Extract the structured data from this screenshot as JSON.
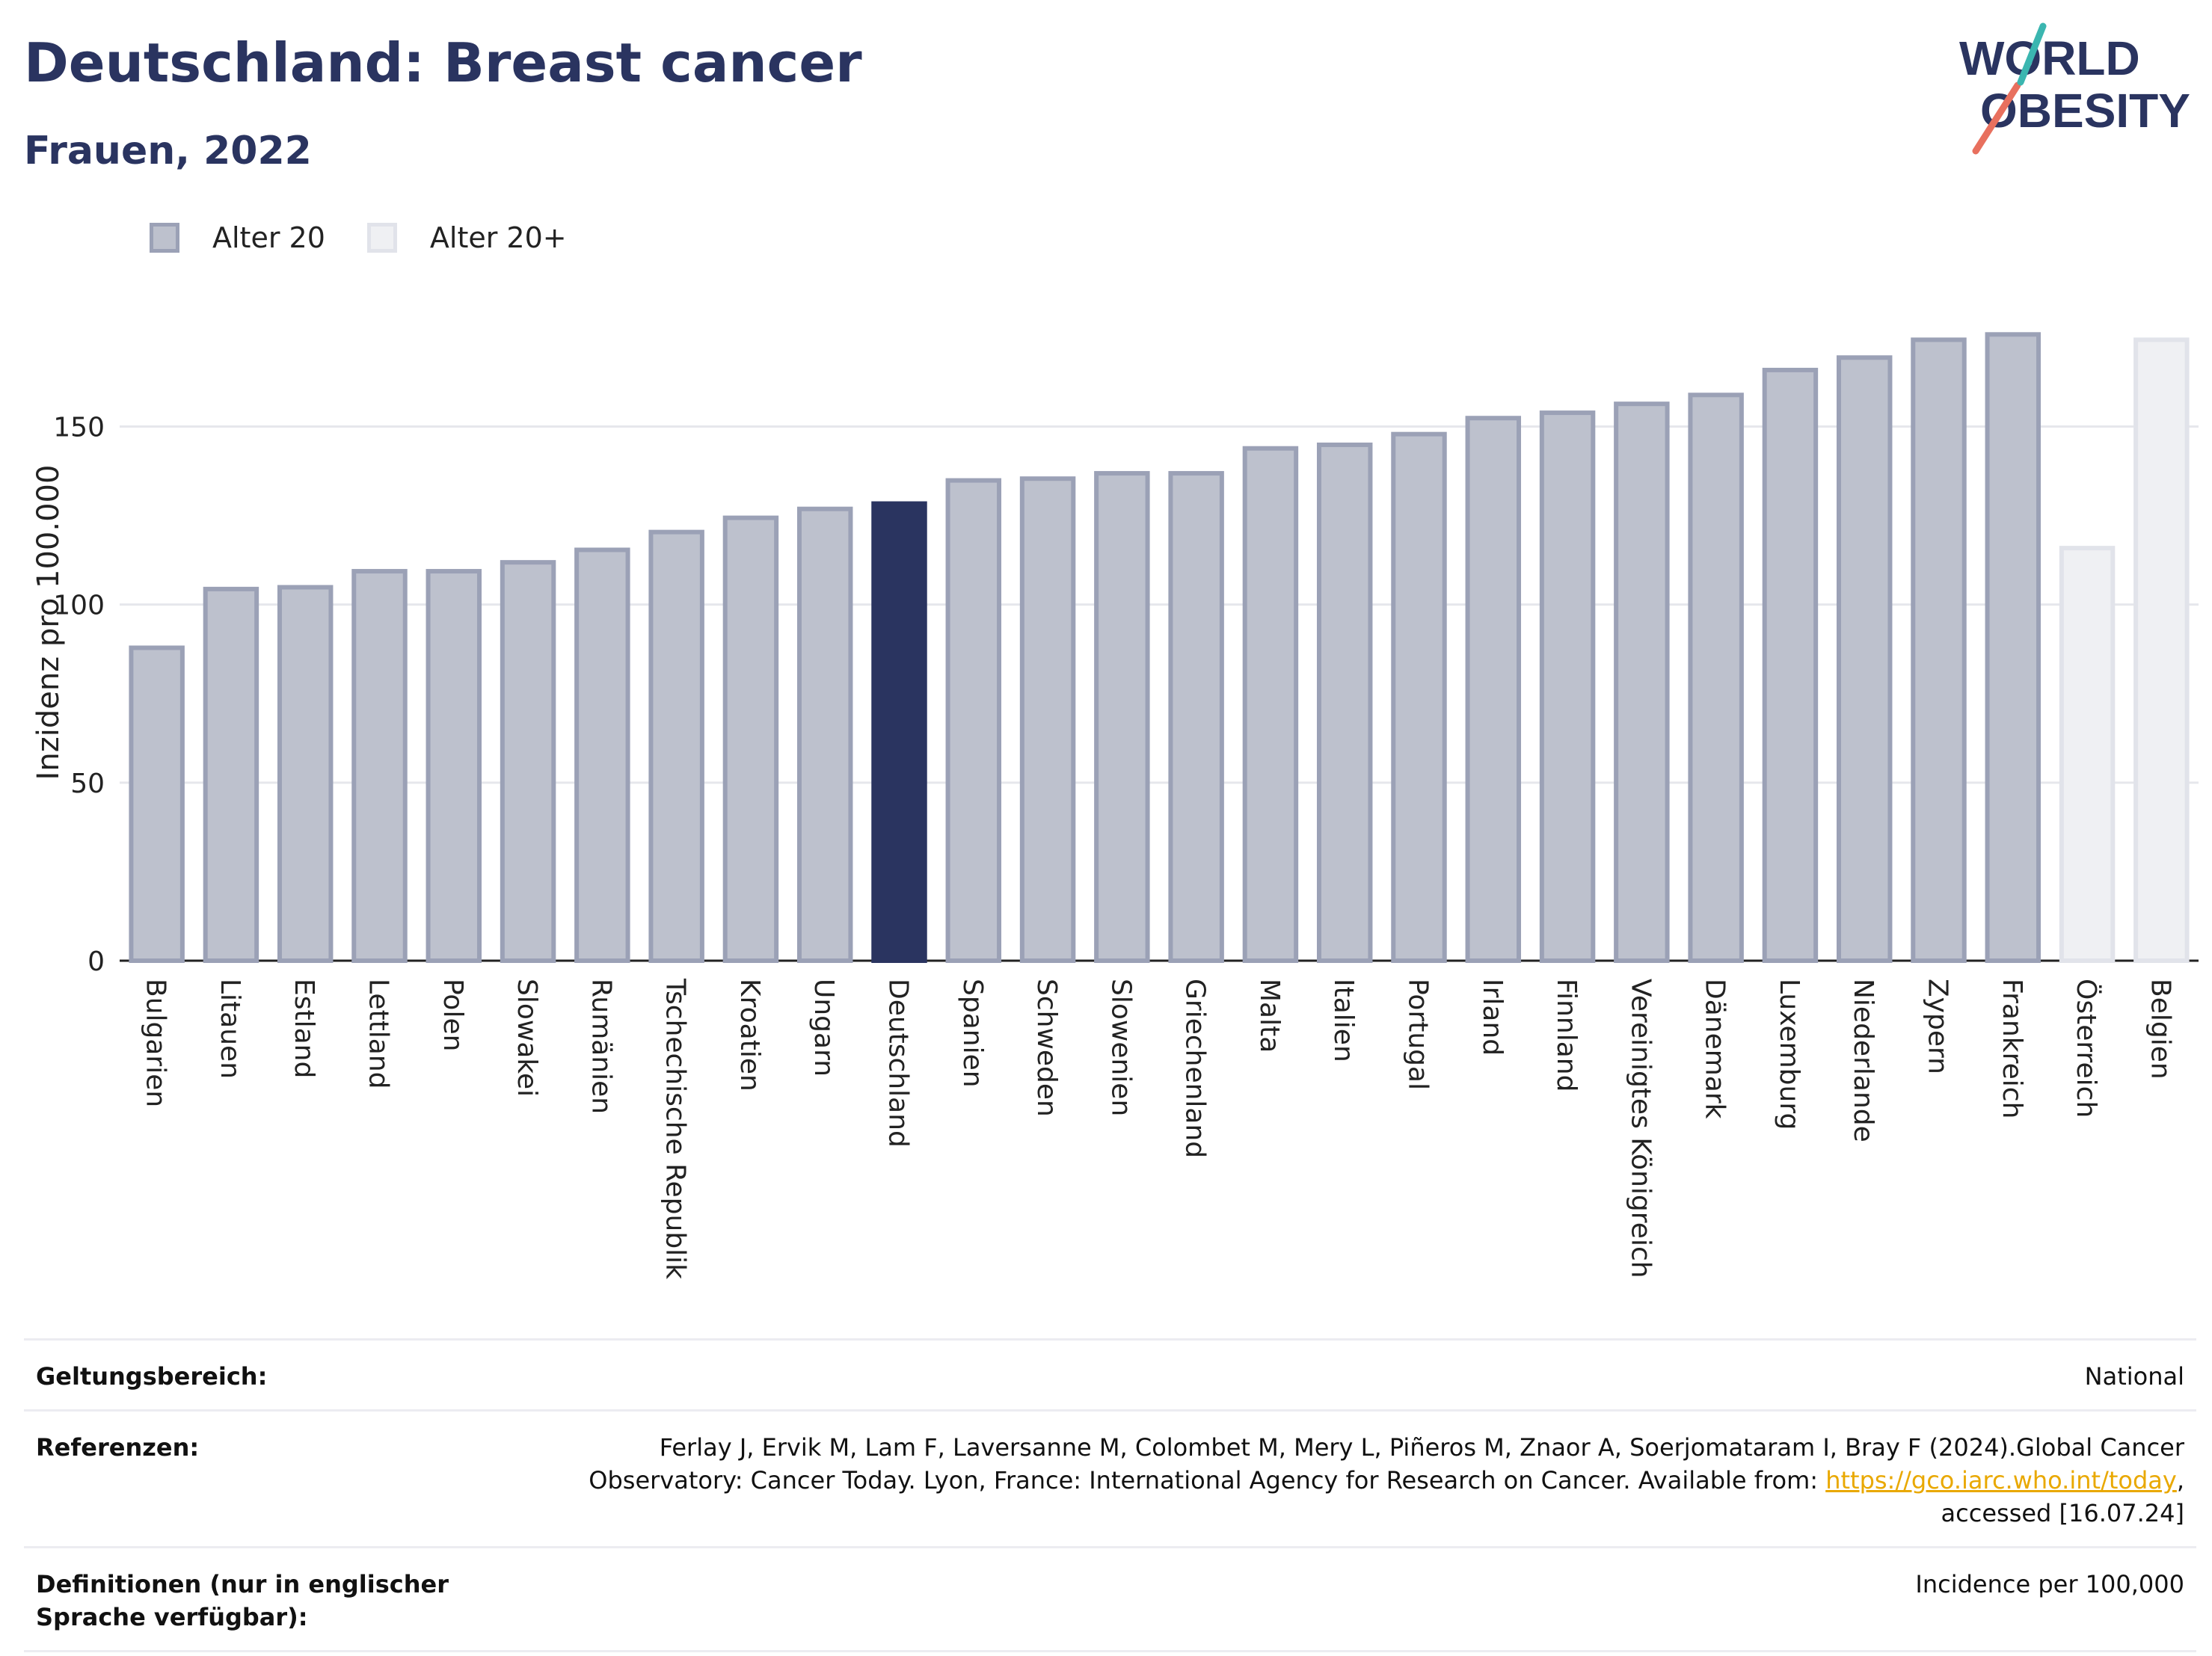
{
  "header": {
    "title": "Deutschland: Breast cancer",
    "subtitle": "Frauen, 2022",
    "logo_line1": "WORLD",
    "logo_line2": "OBESITY"
  },
  "legend": [
    {
      "label": "Alter 20",
      "color": "#bdc1cd"
    },
    {
      "label": "Alter 20+",
      "color": "#eff0f3"
    }
  ],
  "chart_data": {
    "type": "bar",
    "ylabel": "Inzidenz pro 100.000",
    "xlabel": "",
    "ylim": [
      0,
      190
    ],
    "yticks": [
      0,
      50,
      100,
      150
    ],
    "grid": true,
    "legend_position": "top-left",
    "categories": [
      "Bulgarien",
      "Litauen",
      "Estland",
      "Lettland",
      "Polen",
      "Slowakei",
      "Rumänien",
      "Tschechische Republik",
      "Kroatien",
      "Ungarn",
      "Deutschland",
      "Spanien",
      "Schweden",
      "Slowenien",
      "Griechenland",
      "Malta",
      "Italien",
      "Portugal",
      "Irland",
      "Finnland",
      "Vereinigtes Königreich",
      "Dänemark",
      "Luxemburg",
      "Niederlande",
      "Zypern",
      "Frankreich",
      "Österreich",
      "Belgien"
    ],
    "values": [
      88.5,
      105,
      105.5,
      110,
      110,
      112.5,
      116,
      121,
      125,
      127.5,
      129,
      135.5,
      136,
      137.5,
      137.5,
      144.5,
      145.5,
      148.5,
      153,
      154.5,
      157,
      159.5,
      166.5,
      170,
      175,
      176.5,
      116.5,
      175
    ],
    "groups": [
      "Alter 20",
      "Alter 20",
      "Alter 20",
      "Alter 20",
      "Alter 20",
      "Alter 20",
      "Alter 20",
      "Alter 20",
      "Alter 20",
      "Alter 20",
      "Alter 20",
      "Alter 20",
      "Alter 20",
      "Alter 20",
      "Alter 20",
      "Alter 20",
      "Alter 20",
      "Alter 20",
      "Alter 20",
      "Alter 20",
      "Alter 20",
      "Alter 20",
      "Alter 20",
      "Alter 20",
      "Alter 20",
      "Alter 20",
      "Alter 20+",
      "Alter 20+"
    ],
    "highlight": "Deutschland",
    "colors": {
      "fill": "#bdc1cd",
      "stroke": "#9ba1b6",
      "light_fill": "#eff0f3",
      "light_stroke": "#e1e3ea",
      "highlight": "#2a3460"
    }
  },
  "info": {
    "scope_label": "Geltungsbereich:",
    "scope_value": "National",
    "refs_label": "Referenzen:",
    "refs_text": "Ferlay J, Ervik M, Lam F, Laversanne M, Colombet M, Mery L, Piñeros M, Znaor A, Soerjomataram I, Bray F (2024).Global Cancer Observatory: Cancer Today. Lyon, France: International Agency for Research on Cancer. Available from: ",
    "refs_link": "https://gco.iarc.who.int/today",
    "refs_tail": ", accessed [16.07.24]",
    "def_label": "Definitionen (nur in englischer Sprache verfügbar):",
    "def_value": "Incidence per 100,000"
  }
}
